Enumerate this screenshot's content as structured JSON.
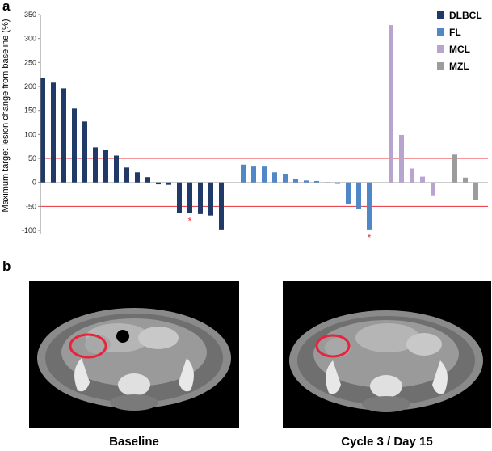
{
  "panels": {
    "a": "a",
    "b": "b"
  },
  "chart_data": {
    "type": "bar",
    "ylabel": "Maximum target lesion change from baseline (%)",
    "xlabel": "",
    "ylim": [
      -110,
      350
    ],
    "yticks": [
      -100,
      -50,
      0,
      50,
      100,
      150,
      200,
      250,
      300,
      350
    ],
    "reference_lines": [
      50,
      -50
    ],
    "reference_line_color": "#e8303a",
    "legend_position": "top-right",
    "series": [
      {
        "name": "DLBCL",
        "color": "#1f3a66",
        "values": [
          218,
          208,
          196,
          154,
          127,
          73,
          68,
          56,
          31,
          21,
          11,
          -4,
          -5,
          -63,
          -64,
          -66,
          -69,
          -98
        ],
        "marked_index": 14
      },
      {
        "name": "FL",
        "color": "#4f87c7",
        "values": [
          37,
          33,
          33,
          21,
          18,
          8,
          4,
          3,
          -1,
          -3,
          -45,
          -56,
          -98
        ],
        "marked_index": 12
      },
      {
        "name": "MCL",
        "color": "#b7a4cf",
        "values": [
          328,
          99,
          29,
          12,
          -27
        ]
      },
      {
        "name": "MZL",
        "color": "#9c9c9c",
        "values": [
          58,
          10,
          -37
        ]
      }
    ],
    "marker_symbol": "*",
    "marker_color": "#e8303a"
  },
  "images": [
    {
      "caption": "Baseline"
    },
    {
      "caption": "Cycle 3 / Day 15"
    }
  ]
}
